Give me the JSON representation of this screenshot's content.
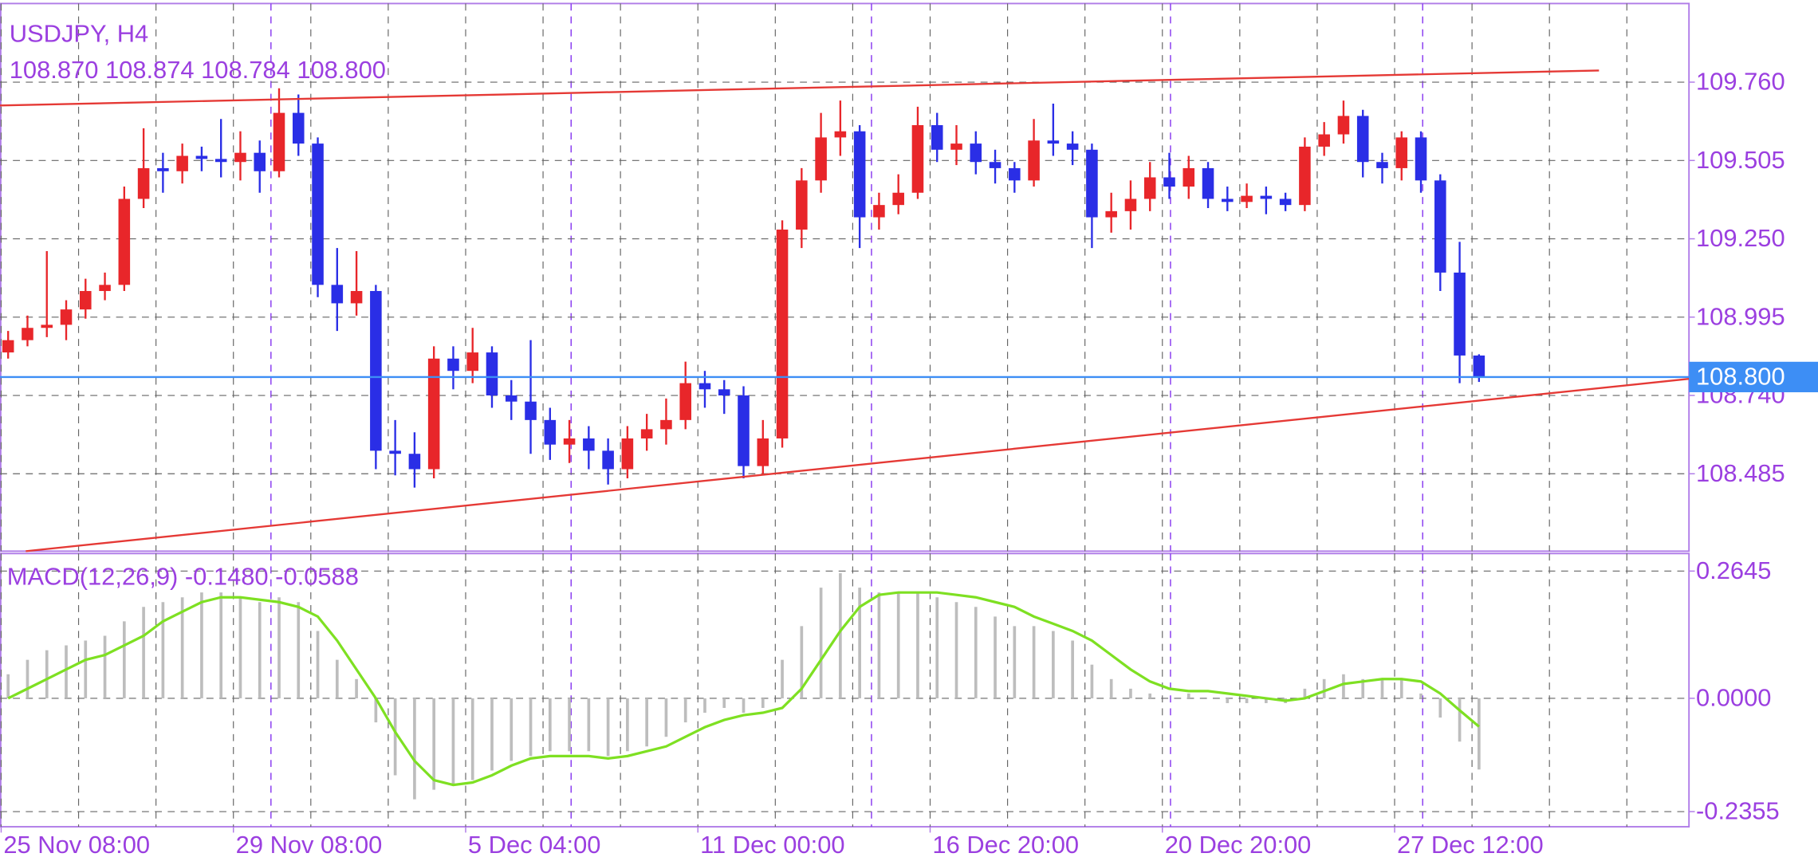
{
  "chart_data": [
    {
      "type": "candlestick",
      "title": "USDJPY, H4",
      "ohlc_text": "108.870 108.874 108.784 108.800",
      "up_color": "#e8262a",
      "down_color": "#2a2ee6",
      "open": [
        108.88,
        108.92,
        108.96,
        108.97,
        109.02,
        109.08,
        109.1,
        109.38,
        109.48,
        109.47,
        109.52,
        109.51,
        109.5,
        109.53,
        109.47,
        109.66,
        109.56,
        109.1,
        109.04,
        109.08,
        108.56,
        108.55,
        108.5,
        108.86,
        108.82,
        108.88,
        108.74,
        108.72,
        108.66,
        108.58,
        108.6,
        108.56,
        108.5,
        108.6,
        108.63,
        108.66,
        108.78,
        108.76,
        108.74,
        108.51,
        108.6,
        109.28,
        109.44,
        109.58,
        109.6,
        109.32,
        109.36,
        109.4,
        109.62,
        109.54,
        109.56,
        109.5,
        109.48,
        109.44,
        109.57,
        109.56,
        109.54,
        109.32,
        109.34,
        109.38,
        109.45,
        109.42,
        109.48,
        109.38,
        109.37,
        109.39,
        109.38,
        109.36,
        109.55,
        109.59,
        109.65,
        109.5,
        109.48,
        109.58,
        109.44,
        109.14,
        108.87
      ],
      "high": [
        108.95,
        109.0,
        109.21,
        109.05,
        109.12,
        109.14,
        109.42,
        109.61,
        109.53,
        109.56,
        109.55,
        109.64,
        109.6,
        109.57,
        109.74,
        109.72,
        109.58,
        109.22,
        109.21,
        109.1,
        108.66,
        108.62,
        108.9,
        108.9,
        108.96,
        108.9,
        108.79,
        108.92,
        108.7,
        108.66,
        108.64,
        108.6,
        108.64,
        108.68,
        108.73,
        108.85,
        108.82,
        108.79,
        108.77,
        108.66,
        109.31,
        109.48,
        109.66,
        109.7,
        109.62,
        109.4,
        109.46,
        109.68,
        109.66,
        109.62,
        109.6,
        109.54,
        109.5,
        109.64,
        109.69,
        109.6,
        109.56,
        109.4,
        109.44,
        109.5,
        109.53,
        109.52,
        109.5,
        109.42,
        109.43,
        109.42,
        109.4,
        109.58,
        109.63,
        109.7,
        109.67,
        109.53,
        109.6,
        109.6,
        109.46,
        109.24,
        108.874
      ],
      "low": [
        108.86,
        108.9,
        108.93,
        108.92,
        108.99,
        109.05,
        109.08,
        109.35,
        109.4,
        109.43,
        109.47,
        109.45,
        109.44,
        109.4,
        109.45,
        109.52,
        109.06,
        108.95,
        109.0,
        108.5,
        108.48,
        108.44,
        108.47,
        108.76,
        108.78,
        108.7,
        108.66,
        108.55,
        108.53,
        108.52,
        108.5,
        108.45,
        108.47,
        108.56,
        108.58,
        108.63,
        108.7,
        108.68,
        108.47,
        108.48,
        108.57,
        109.22,
        109.4,
        109.52,
        109.22,
        109.28,
        109.33,
        109.38,
        109.5,
        109.49,
        109.46,
        109.43,
        109.4,
        109.42,
        109.52,
        109.49,
        109.22,
        109.27,
        109.28,
        109.34,
        109.38,
        109.38,
        109.35,
        109.34,
        109.35,
        109.33,
        109.34,
        109.34,
        109.52,
        109.56,
        109.45,
        109.43,
        109.44,
        109.4,
        109.08,
        108.78,
        108.784
      ],
      "close": [
        108.92,
        108.96,
        108.97,
        109.02,
        109.08,
        109.1,
        109.38,
        109.48,
        109.47,
        109.52,
        109.51,
        109.5,
        109.53,
        109.47,
        109.66,
        109.56,
        109.1,
        109.04,
        109.08,
        108.56,
        108.55,
        108.5,
        108.86,
        108.82,
        108.88,
        108.74,
        108.72,
        108.66,
        108.58,
        108.6,
        108.56,
        108.5,
        108.6,
        108.63,
        108.66,
        108.78,
        108.76,
        108.74,
        108.51,
        108.6,
        109.28,
        109.44,
        109.58,
        109.6,
        109.32,
        109.36,
        109.4,
        109.62,
        109.54,
        109.56,
        109.5,
        109.48,
        109.44,
        109.57,
        109.56,
        109.54,
        109.32,
        109.34,
        109.38,
        109.45,
        109.42,
        109.48,
        109.38,
        109.37,
        109.39,
        109.38,
        109.36,
        109.55,
        109.59,
        109.65,
        109.5,
        109.48,
        109.58,
        109.44,
        109.14,
        108.87,
        108.8
      ],
      "xlim": [
        -0.42,
        86.85
      ],
      "ylim": [
        108.233,
        110.016
      ],
      "yticks": [
        {
          "value": 109.76,
          "label": "109.760"
        },
        109.505,
        {
          "value": 109.25,
          "label": "109.250"
        },
        108.995,
        {
          "value": 108.74,
          "label": "108.740"
        },
        108.485
      ],
      "xticks": [
        {
          "value": -0.36,
          "label": "25 Nov 08:00"
        },
        {
          "value": 11.64,
          "label": "29 Nov 08:00"
        },
        {
          "value": 23.64,
          "label": "5 Dec 04:00"
        },
        {
          "value": 35.64,
          "label": "11 Dec 00:00"
        },
        {
          "value": 47.64,
          "label": "16 Dec 20:00"
        },
        {
          "value": 59.64,
          "label": "20 Dec 20:00"
        },
        {
          "value": 71.64,
          "label": "27 Dec 12:00"
        }
      ],
      "xgrid": [
        -0.36,
        3.64,
        7.64,
        11.64,
        15.64,
        19.64,
        23.64,
        27.64,
        31.64,
        35.64,
        39.64,
        43.64,
        47.64,
        51.64,
        55.64,
        59.64,
        63.64,
        67.64,
        71.64,
        75.64,
        79.64,
        83.64
      ],
      "period_separators": [
        13.58,
        29.09,
        44.61,
        60.06,
        73.09
      ],
      "current_price": {
        "value": 108.8,
        "label": "108.800",
        "color": "#3d8ef5"
      },
      "trendlines": [
        {
          "x": [
            -0.42,
            82.2
          ],
          "y": [
            109.684,
            109.798
          ],
          "color": "#e53935"
        },
        {
          "x": [
            0.91,
            86.85
          ],
          "y": [
            108.233,
            108.794
          ],
          "color": "#e53935"
        }
      ],
      "grid": true
    },
    {
      "type": "macd",
      "title": "MACD(12,26,9) -0.1480 -0.0588",
      "histogram": [
        0.05,
        0.08,
        0.1,
        0.11,
        0.12,
        0.13,
        0.16,
        0.19,
        0.2,
        0.21,
        0.22,
        0.22,
        0.21,
        0.2,
        0.21,
        0.2,
        0.14,
        0.08,
        0.04,
        -0.05,
        -0.16,
        -0.21,
        -0.19,
        -0.18,
        -0.17,
        -0.15,
        -0.13,
        -0.12,
        -0.11,
        -0.11,
        -0.11,
        -0.12,
        -0.11,
        -0.1,
        -0.08,
        -0.05,
        -0.03,
        -0.02,
        -0.03,
        -0.02,
        0.08,
        0.15,
        0.23,
        0.26,
        0.23,
        0.22,
        0.22,
        0.22,
        0.21,
        0.2,
        0.19,
        0.17,
        0.15,
        0.15,
        0.14,
        0.12,
        0.07,
        0.04,
        0.02,
        0.01,
        0.0,
        0.01,
        0.0,
        -0.01,
        -0.01,
        -0.01,
        -0.01,
        0.02,
        0.04,
        0.05,
        0.04,
        0.04,
        0.04,
        0.01,
        -0.04,
        -0.09,
        -0.148
      ],
      "histogram_color": "#bdbdbd",
      "signal": [
        0.0,
        0.02,
        0.04,
        0.06,
        0.08,
        0.09,
        0.11,
        0.13,
        0.16,
        0.18,
        0.2,
        0.21,
        0.21,
        0.205,
        0.2,
        0.19,
        0.17,
        0.12,
        0.06,
        0.0,
        -0.07,
        -0.13,
        -0.17,
        -0.18,
        -0.175,
        -0.16,
        -0.14,
        -0.125,
        -0.12,
        -0.12,
        -0.12,
        -0.125,
        -0.12,
        -0.11,
        -0.1,
        -0.08,
        -0.06,
        -0.045,
        -0.035,
        -0.03,
        -0.02,
        0.02,
        0.08,
        0.14,
        0.19,
        0.215,
        0.22,
        0.22,
        0.22,
        0.215,
        0.21,
        0.2,
        0.19,
        0.17,
        0.155,
        0.14,
        0.12,
        0.09,
        0.06,
        0.035,
        0.02,
        0.015,
        0.015,
        0.01,
        0.005,
        0.0,
        -0.005,
        0.0,
        0.015,
        0.03,
        0.035,
        0.04,
        0.04,
        0.035,
        0.01,
        -0.025,
        -0.0588
      ],
      "signal_color": "#7ee022",
      "ylim": [
        -0.267,
        0.301
      ],
      "yticks": [
        0.2645,
        {
          "value": 0,
          "label": "0.0000"
        },
        -0.2355
      ],
      "grid": true
    }
  ]
}
